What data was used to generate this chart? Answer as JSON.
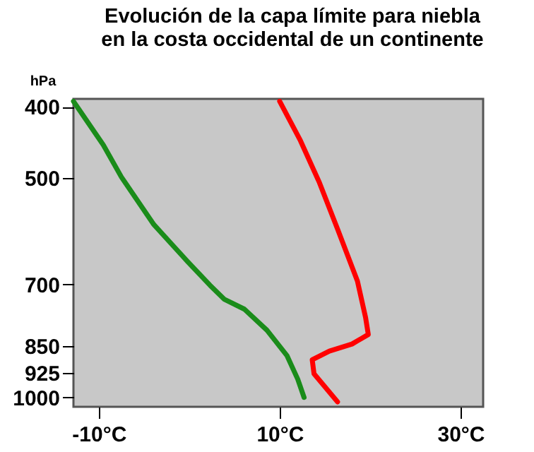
{
  "chart_data": {
    "type": "line",
    "title": "Evolución de la capa límite para niebla\nen la costa occidental de un continente",
    "ylabel": "hPa",
    "log": "y",
    "xlim": [
      -12.8,
      32.5
    ],
    "ylim": [
      1030,
      390
    ],
    "xticks": [
      {
        "value": -10,
        "label": "-10°C"
      },
      {
        "value": 10,
        "label": "10°C"
      },
      {
        "value": 30,
        "label": "30°C"
      }
    ],
    "yticks": [
      400,
      500,
      700,
      850,
      925,
      1000
    ],
    "series": [
      {
        "color": "#1a8c1a",
        "x": [
          -12.8,
          -9.5,
          -7.5,
          -3.9,
          -0.2,
          2.3,
          3.9,
          6.1,
          8.6,
          10.8,
          12.0,
          12.7
        ],
        "values": [
          393,
          451,
          499,
          580,
          651,
          702,
          734,
          757,
          809,
          876,
          944,
          1000
        ]
      },
      {
        "color": "#ff0000",
        "x": [
          10.0,
          12.3,
          14.4,
          16.4,
          18.6,
          19.5,
          19.8,
          18.0,
          15.5,
          13.6,
          13.8,
          14.7,
          16.4
        ],
        "values": [
          393,
          445,
          508,
          588,
          693,
          777,
          820,
          845,
          864,
          888,
          928,
          957,
          1014
        ]
      }
    ]
  }
}
